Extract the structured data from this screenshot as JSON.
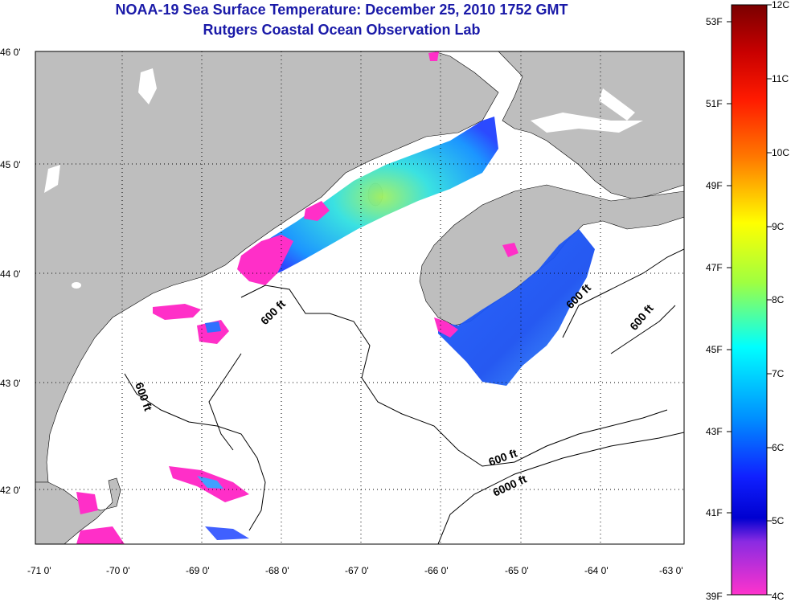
{
  "header": {
    "title": "NOAA-19 Sea Surface Temperature:  December 25, 2010 1752 GMT",
    "subtitle": "Rutgers Coastal Ocean Observation Lab"
  },
  "map": {
    "lon_ticks": [
      "-71 0'",
      "-70 0'",
      "-69 0'",
      "-68 0'",
      "-67 0'",
      "-66 0'",
      "-65 0'",
      "-64 0'",
      "-63 0'"
    ],
    "lat_ticks": [
      "46 0'",
      "45 0'",
      "44 0'",
      "43 0'",
      "42 0'"
    ],
    "contour_labels": [
      "600 ft",
      "600 ft",
      "600 ft",
      "600 ft",
      "600 ft",
      "6000 ft"
    ],
    "land_color": "#bebebe",
    "water_color": "#ffffff"
  },
  "colorbar": {
    "celsius_labels": [
      "12C",
      "11C",
      "10C",
      "9C",
      "8C",
      "7C",
      "6C",
      "5C",
      "4C"
    ],
    "fahrenheit_labels": [
      "53F",
      "51F",
      "49F",
      "47F",
      "45F",
      "43F",
      "41F",
      "39F"
    ]
  }
}
